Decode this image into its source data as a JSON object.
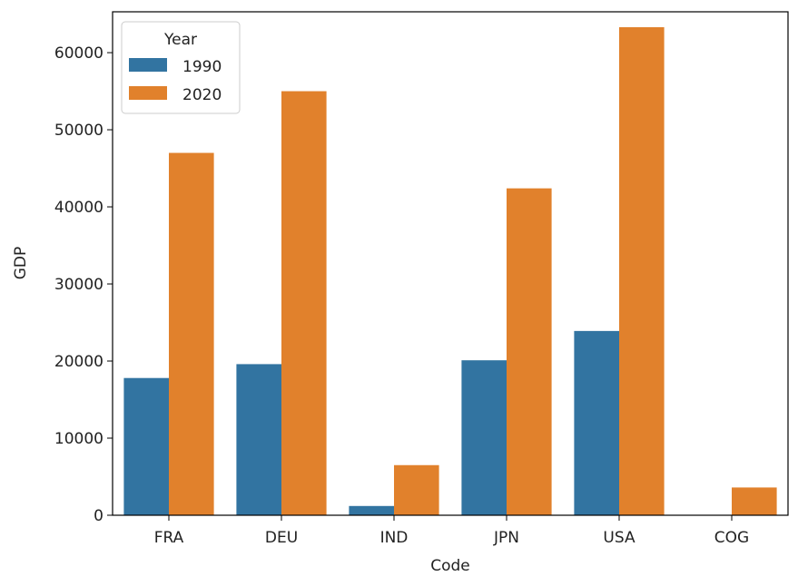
{
  "chart_data": {
    "type": "bar",
    "title": "",
    "xlabel": "Code",
    "ylabel": "GDP",
    "categories": [
      "FRA",
      "DEU",
      "IND",
      "JPN",
      "USA",
      "COG"
    ],
    "series": [
      {
        "name": "1990",
        "color": "#3274a1",
        "values": [
          17800,
          19600,
          1200,
          20100,
          23900,
          0
        ]
      },
      {
        "name": "2020",
        "color": "#e1812c",
        "values": [
          47000,
          55000,
          6500,
          42400,
          63300,
          3600
        ]
      }
    ],
    "ylim": [
      0,
      65300
    ],
    "yticks": [
      0,
      10000,
      20000,
      30000,
      40000,
      50000,
      60000
    ],
    "legend": {
      "title": "Year",
      "placement": "top-left"
    },
    "grid": false
  }
}
